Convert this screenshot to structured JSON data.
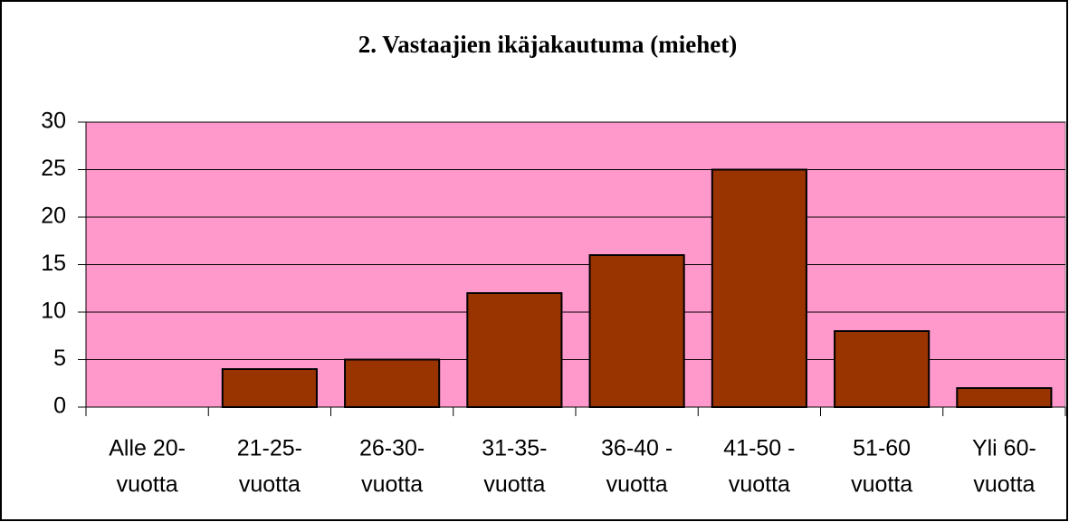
{
  "chart_data": {
    "type": "bar",
    "title": "2. Vastaajien ikäjakautuma (miehet)",
    "categories": [
      [
        "Alle 20-",
        "vuotta"
      ],
      [
        "21-25-",
        "vuotta"
      ],
      [
        "26-30-",
        "vuotta"
      ],
      [
        "31-35-",
        "vuotta"
      ],
      [
        "36-40 -",
        "vuotta"
      ],
      [
        "41-50 -",
        "vuotta"
      ],
      [
        "51-60",
        "vuotta"
      ],
      [
        "Yli 60-",
        "vuotta"
      ]
    ],
    "values": [
      0,
      4,
      5,
      12,
      16,
      25,
      8,
      2
    ],
    "color": "#993300",
    "plot_background": "#ff99cc",
    "ylim": [
      0,
      30
    ],
    "yticks": [
      0,
      5,
      10,
      15,
      20,
      25,
      30
    ],
    "grid": true
  }
}
